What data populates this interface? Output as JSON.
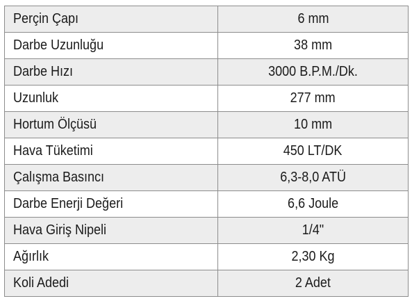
{
  "table": {
    "rows": [
      [
        "Perçin Çapı",
        "6 mm"
      ],
      [
        "Darbe Uzunluğu",
        "38 mm"
      ],
      [
        "Darbe Hızı",
        "3000 B.P.M./Dk."
      ],
      [
        "Uzunluk",
        "277 mm"
      ],
      [
        "Hortum Ölçüsü",
        "10 mm"
      ],
      [
        "Hava Tüketimi",
        "450 LT/DK"
      ],
      [
        "Çalışma Basıncı",
        "6,3-8,0 ATÜ"
      ],
      [
        "Darbe Enerji Değeri",
        "6,6 Joule"
      ],
      [
        "Hava Giriş Nipeli",
        "1/4\""
      ],
      [
        "Ağırlık",
        "2,30 Kg"
      ],
      [
        "Koli Adedi",
        "2 Adet"
      ]
    ]
  }
}
